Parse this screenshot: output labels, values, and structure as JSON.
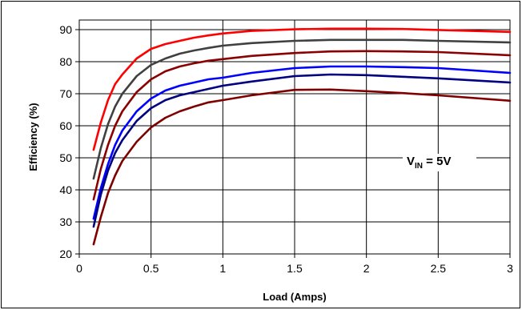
{
  "chart_data": {
    "type": "line",
    "xlabel": "Load (Amps)",
    "ylabel": "Efficiency (%)",
    "xlim": [
      0,
      3
    ],
    "ylim": [
      20,
      93
    ],
    "xticks": [
      "0",
      "0.5",
      "1",
      "1.5",
      "2",
      "2.5",
      "3"
    ],
    "yticks": [
      "20",
      "30",
      "40",
      "50",
      "60",
      "70",
      "80",
      "90"
    ],
    "grid": true,
    "annotation": {
      "main": "V",
      "subscript": "IN",
      "rest": " = 5V"
    },
    "series": [
      {
        "color": "#ff0000",
        "x": [
          0.1,
          0.15,
          0.2,
          0.25,
          0.3,
          0.4,
          0.5,
          0.6,
          0.7,
          0.8,
          0.9,
          1.0,
          1.2,
          1.5,
          1.75,
          2.0,
          2.25,
          2.5,
          3.0
        ],
        "y": [
          52.5,
          61,
          68,
          73,
          76,
          81,
          84,
          85.5,
          86.5,
          87.5,
          88.2,
          88.8,
          89.6,
          90.1,
          90.3,
          90.3,
          90.2,
          89.9,
          89.3
        ]
      },
      {
        "color": "#404040",
        "x": [
          0.1,
          0.15,
          0.2,
          0.25,
          0.3,
          0.4,
          0.5,
          0.6,
          0.7,
          0.8,
          0.9,
          1.0,
          1.2,
          1.5,
          1.75,
          2.0,
          2.25,
          2.5,
          3.0
        ],
        "y": [
          43.5,
          53,
          60.5,
          66,
          70,
          75.5,
          79,
          81,
          82.5,
          83.5,
          84.3,
          85,
          85.8,
          86.5,
          86.8,
          86.8,
          86.8,
          86.5,
          86.0
        ]
      },
      {
        "color": "#8b0000",
        "x": [
          0.1,
          0.15,
          0.2,
          0.25,
          0.3,
          0.4,
          0.5,
          0.6,
          0.7,
          0.8,
          0.9,
          1.0,
          1.2,
          1.5,
          1.75,
          2.0,
          2.25,
          2.5,
          3.0
        ],
        "y": [
          37,
          46.5,
          54,
          60,
          64.5,
          70.5,
          74.5,
          77,
          78.5,
          79.5,
          80.3,
          80.8,
          81.8,
          82.7,
          83.2,
          83.3,
          83.2,
          83.0,
          82.0
        ]
      },
      {
        "color": "#0000ff",
        "x": [
          0.1,
          0.15,
          0.2,
          0.25,
          0.3,
          0.4,
          0.5,
          0.6,
          0.7,
          0.8,
          0.9,
          1.0,
          1.2,
          1.5,
          1.75,
          2.0,
          2.25,
          2.5,
          3.0
        ],
        "y": [
          31,
          40.5,
          48,
          54,
          58.5,
          64.5,
          68.5,
          71,
          72.5,
          73.5,
          74.5,
          75,
          76.5,
          78.0,
          78.5,
          78.5,
          78.3,
          78.0,
          76.5
        ]
      },
      {
        "color": "#000080",
        "x": [
          0.1,
          0.15,
          0.2,
          0.25,
          0.3,
          0.4,
          0.5,
          0.6,
          0.7,
          0.8,
          0.9,
          1.0,
          1.2,
          1.5,
          1.75,
          2.0,
          2.25,
          2.5,
          3.0
        ],
        "y": [
          28.5,
          38.5,
          46,
          51.5,
          55.5,
          61.5,
          65.5,
          68,
          69.5,
          70.5,
          71.5,
          72.5,
          73.8,
          75.5,
          76.0,
          75.8,
          75.3,
          74.8,
          73.5
        ]
      },
      {
        "color": "#800000",
        "x": [
          0.1,
          0.15,
          0.2,
          0.25,
          0.3,
          0.4,
          0.5,
          0.6,
          0.7,
          0.8,
          0.9,
          1.0,
          1.2,
          1.5,
          1.75,
          2.0,
          2.25,
          2.5,
          3.0
        ],
        "y": [
          23,
          31.5,
          39,
          44.5,
          49,
          55,
          59.5,
          62.5,
          64.5,
          66,
          67.3,
          68,
          69.5,
          71.2,
          71.3,
          70.8,
          70.2,
          69.5,
          67.8
        ]
      }
    ]
  }
}
